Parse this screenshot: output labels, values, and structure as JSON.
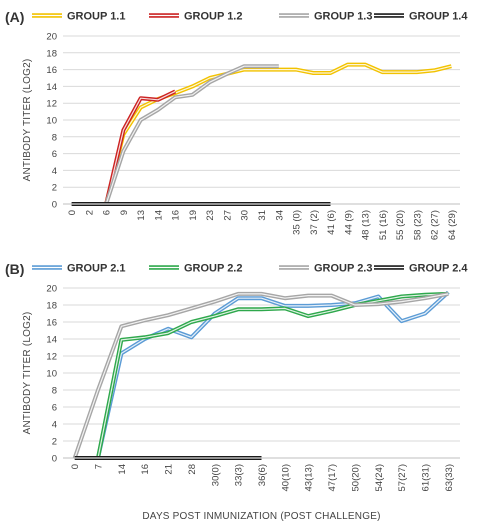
{
  "chart_data": [
    {
      "type": "line",
      "panel_label": "(A)",
      "ylabel": "ANTIBODY TITER (LOG2)",
      "ylim": [
        0,
        20
      ],
      "yticks": [
        0,
        2,
        4,
        6,
        8,
        10,
        12,
        14,
        16,
        18,
        20
      ],
      "categories": [
        "0",
        "2",
        "6",
        "9",
        "13",
        "14",
        "16",
        "19",
        "23",
        "27",
        "30",
        "31",
        "34",
        "35 (0)",
        "37 (2)",
        "41 (6)",
        "44 (9)",
        "48 (13)",
        "51 (16)",
        "55 (20)",
        "58 (23)",
        "62 (27)",
        "64 (29)"
      ],
      "grid": "horizontal",
      "legend_position": "top",
      "series": [
        {
          "name": "GROUP 1.1",
          "color": "#f2c200",
          "values": [
            null,
            null,
            0,
            8.3,
            11.5,
            12.5,
            13.2,
            14,
            15,
            15.5,
            16,
            16,
            16,
            16,
            15.6,
            15.6,
            16.6,
            16.6,
            15.7,
            15.7,
            15.7,
            15.9,
            16.4
          ]
        },
        {
          "name": "GROUP 1.2",
          "color": "#cc2222",
          "values": [
            null,
            null,
            0,
            8.8,
            12.6,
            12.4,
            13.4,
            null,
            null,
            null,
            null,
            null,
            null,
            null,
            null,
            null,
            null,
            null,
            null,
            null,
            null,
            null,
            null
          ]
        },
        {
          "name": "GROUP 1.3",
          "color": "#a6a6a6",
          "values": [
            null,
            null,
            0,
            6.3,
            10,
            11.2,
            12.7,
            13,
            14.5,
            15.5,
            16.4,
            16.4,
            16.4,
            null,
            null,
            null,
            null,
            null,
            null,
            null,
            null,
            null,
            null
          ]
        },
        {
          "name": "GROUP 1.4",
          "color": "#1a1a1a",
          "values": [
            0,
            0,
            0,
            0,
            0,
            0,
            0,
            0,
            0,
            0,
            0,
            0,
            0,
            0,
            0,
            0,
            null,
            null,
            null,
            null,
            null,
            null,
            null
          ]
        }
      ]
    },
    {
      "type": "line",
      "panel_label": "(B)",
      "ylabel": "ANTIBODY TITER (LOG2)",
      "xlabel": "DAYS POST INMUNIZATION (POST CHALLENGE)",
      "ylim": [
        0,
        20
      ],
      "yticks": [
        0,
        2,
        4,
        6,
        8,
        10,
        12,
        14,
        16,
        18,
        20
      ],
      "categories": [
        "0",
        "7",
        "14",
        "16",
        "21",
        "28",
        "30(0)",
        "33(3)",
        "36(6)",
        "40(10)",
        "43(13)",
        "47(17)",
        "50(20)",
        "54(24)",
        "57(27)",
        "61(31)",
        "63(33)"
      ],
      "grid": "horizontal",
      "legend_position": "top",
      "series": [
        {
          "name": "GROUP 2.1",
          "color": "#5b9bd5",
          "values": [
            null,
            0,
            12.3,
            14,
            15.2,
            14.2,
            17,
            18.8,
            18.8,
            17.9,
            17.9,
            18,
            18.2,
            19,
            16.1,
            17,
            19.5
          ]
        },
        {
          "name": "GROUP 2.2",
          "color": "#2ea84c",
          "values": [
            null,
            0,
            13.9,
            14.2,
            14.7,
            16,
            16.7,
            17.5,
            17.5,
            17.6,
            16.7,
            17.3,
            18,
            18.5,
            19,
            19.2,
            19.3
          ]
        },
        {
          "name": "GROUP 2.3",
          "color": "#a6a6a6",
          "values": [
            0,
            8,
            15.5,
            16.2,
            16.8,
            17.6,
            18.4,
            19.3,
            19.3,
            18.8,
            19.1,
            19.1,
            18,
            18.1,
            18.4,
            18.8,
            19.3
          ]
        },
        {
          "name": "GROUP 2.4",
          "color": "#1a1a1a",
          "values": [
            0,
            0,
            0,
            0,
            0,
            0,
            0,
            0,
            0,
            null,
            null,
            null,
            null,
            null,
            null,
            null,
            null
          ]
        }
      ]
    }
  ]
}
